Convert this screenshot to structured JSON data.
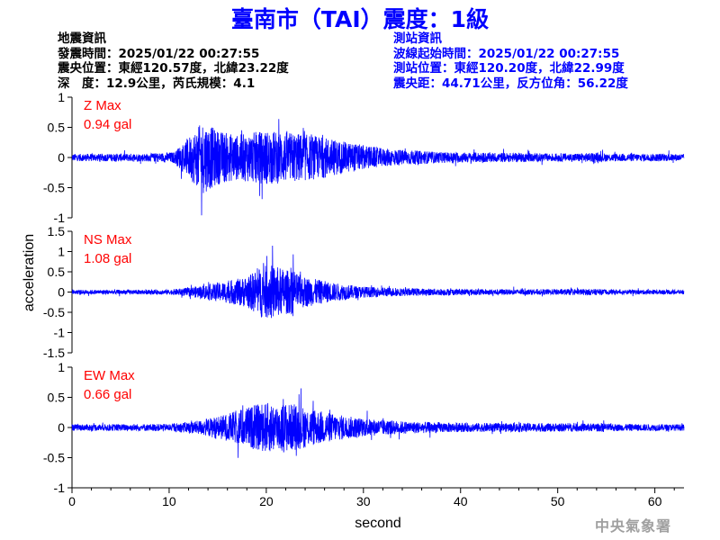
{
  "title": "臺南市（TAI）震度：1級",
  "earthquake_info": {
    "heading": "地震資訊",
    "origin_time": "發震時間：2025/01/22 00:27:55",
    "epicenter": "震央位置：東經120.57度，北緯23.22度",
    "depth_magnitude": "深　度：12.9公里，芮氏規模：4.1"
  },
  "station_info": {
    "heading": "測站資訊",
    "wave_start": "波線起始時間：2025/01/22 00:27:55",
    "location": "測站位置：東經120.20度，北緯22.99度",
    "distance": "震央距：44.71公里，反方位角：56.22度"
  },
  "footer": "中央氣象署",
  "colors": {
    "trace": "#0000ff",
    "max_label": "#ff0000",
    "title": "#0000ff",
    "station_text": "#0000ff",
    "footer": "#a0a0a0"
  },
  "chart_data": {
    "type": "line",
    "xlabel": "second",
    "ylabel": "acceleration",
    "xlim": [
      0,
      63
    ],
    "x_ticks": [
      0,
      10,
      20,
      30,
      40,
      50,
      60
    ],
    "panels": [
      {
        "name": "Z",
        "max_label": "Z Max",
        "max_value": "0.94 gal",
        "ylim": [
          -1,
          1
        ],
        "y_ticks": [
          "1",
          "0.5",
          "0",
          "-0.5",
          "-1"
        ],
        "y_tick_values": [
          1,
          0.5,
          0,
          -0.5,
          -1
        ],
        "envelope": {
          "t": [
            0,
            8,
            10.5,
            12,
            13.5,
            15,
            17,
            20,
            23,
            26,
            28,
            32,
            38,
            50,
            54,
            55,
            63
          ],
          "a": [
            0.08,
            0.09,
            0.12,
            0.45,
            0.8,
            0.6,
            0.5,
            0.6,
            0.55,
            0.45,
            0.35,
            0.2,
            0.12,
            0.09,
            0.1,
            0.09,
            0.08
          ]
        }
      },
      {
        "name": "NS",
        "max_label": "NS Max",
        "max_value": "1.08 gal",
        "ylim": [
          -1.5,
          1.5
        ],
        "y_ticks": [
          "1.5",
          "1",
          "0.5",
          "0",
          "-0.5",
          "-1",
          "-1.5"
        ],
        "y_tick_values": [
          1.5,
          1,
          0.5,
          0,
          -0.5,
          -1,
          -1.5
        ],
        "envelope": {
          "t": [
            0,
            10,
            12,
            15,
            18,
            19.5,
            20.5,
            22,
            24,
            27,
            30,
            35,
            45,
            54,
            55,
            63
          ],
          "a": [
            0.07,
            0.08,
            0.15,
            0.3,
            0.5,
            0.85,
            0.9,
            0.75,
            0.5,
            0.3,
            0.18,
            0.12,
            0.09,
            0.1,
            0.08,
            0.07
          ]
        }
      },
      {
        "name": "EW",
        "max_label": "EW Max",
        "max_value": "0.66 gal",
        "ylim": [
          -1,
          1
        ],
        "y_ticks": [
          "1",
          "0.5",
          "0",
          "-0.5",
          "-1"
        ],
        "y_tick_values": [
          1,
          0.5,
          0,
          -0.5,
          -1
        ],
        "envelope": {
          "t": [
            0,
            10,
            13,
            16,
            18,
            20,
            22,
            24,
            27,
            30,
            34,
            40,
            54,
            55,
            63
          ],
          "a": [
            0.07,
            0.08,
            0.15,
            0.3,
            0.45,
            0.55,
            0.55,
            0.45,
            0.3,
            0.2,
            0.14,
            0.1,
            0.09,
            0.08,
            0.07
          ]
        }
      }
    ]
  }
}
